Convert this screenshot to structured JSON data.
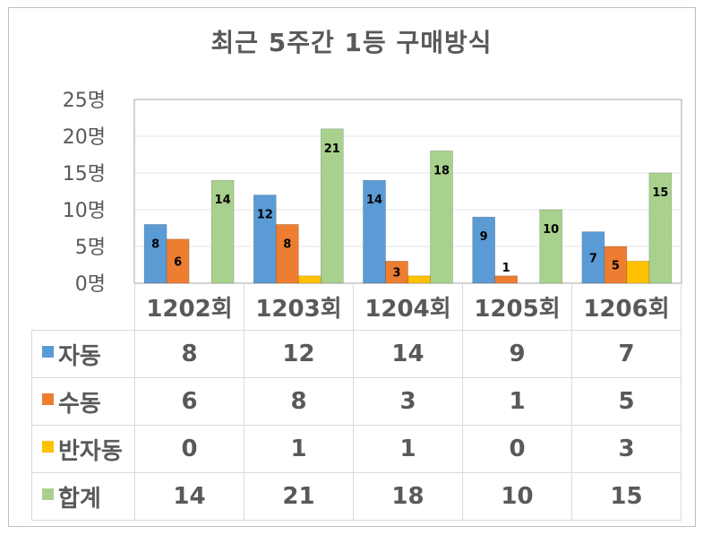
{
  "chart_data": {
    "type": "bar",
    "title": "최근 5주간 1등 구매방식",
    "categories": [
      "1202회",
      "1203회",
      "1204회",
      "1205회",
      "1206회"
    ],
    "series": [
      {
        "name": "자동",
        "color": "#5b9bd5",
        "values": [
          8,
          12,
          14,
          9,
          7
        ]
      },
      {
        "name": "수동",
        "color": "#ed7d31",
        "values": [
          6,
          8,
          3,
          1,
          5
        ]
      },
      {
        "name": "반자동",
        "color": "#ffc000",
        "values": [
          0,
          1,
          1,
          0,
          3
        ]
      },
      {
        "name": "합계",
        "color": "#a9d18e",
        "values": [
          14,
          21,
          18,
          10,
          15
        ]
      }
    ],
    "y_ticks": [
      "0명",
      "5명",
      "10명",
      "15명",
      "20명",
      "25명"
    ],
    "ylim": [
      0,
      25
    ],
    "grid": true,
    "legend": "data-table"
  }
}
